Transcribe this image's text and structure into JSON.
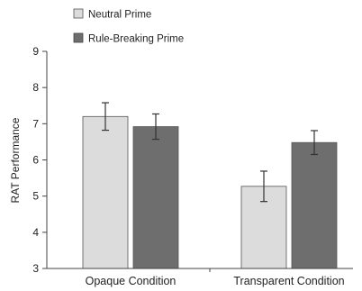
{
  "chart_data": {
    "type": "bar",
    "title": "",
    "xlabel": "",
    "ylabel": "RAT Performance",
    "ylim": [
      3,
      9
    ],
    "yticks": [
      3,
      4,
      5,
      6,
      7,
      8,
      9
    ],
    "categories": [
      "Opaque Condition",
      "Transparent Condition"
    ],
    "series": [
      {
        "name": "Neutral Prime",
        "values": [
          7.2,
          5.27
        ],
        "errors": [
          0.38,
          0.42
        ],
        "color": "#dcdcdc"
      },
      {
        "name": "Rule-Breaking Prime",
        "values": [
          6.92,
          6.48
        ],
        "errors": [
          0.35,
          0.33
        ],
        "color": "#6e6e6e"
      }
    ],
    "error_bars": true,
    "grid": false,
    "legend_position": "top-left"
  }
}
